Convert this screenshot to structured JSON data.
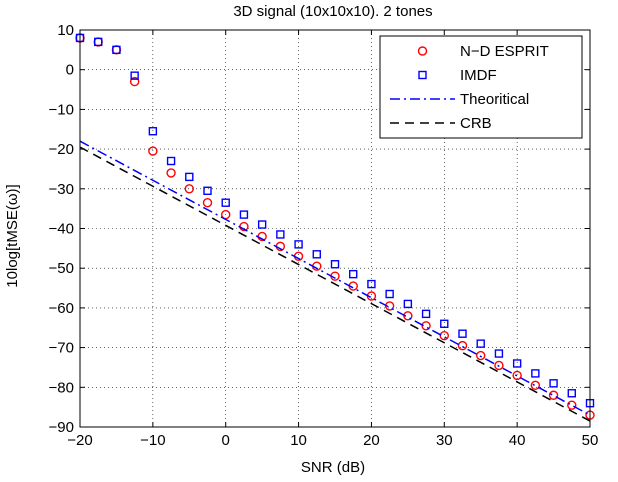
{
  "chart_data": {
    "type": "scatter",
    "title": "3D signal (10x10x10). 2 tones",
    "xlabel": "SNR (dB)",
    "ylabel": "10log[tMSE(ω)]",
    "xlim": [
      -20,
      50
    ],
    "ylim": [
      -90,
      10
    ],
    "xticks": [
      -20,
      -10,
      0,
      10,
      20,
      30,
      40,
      50
    ],
    "yticks": [
      -90,
      -80,
      -70,
      -60,
      -50,
      -40,
      -30,
      -20,
      -10,
      0,
      10
    ],
    "xtick_labels": [
      "−20",
      "−10",
      "0",
      "10",
      "20",
      "30",
      "40",
      "50"
    ],
    "ytick_labels": [
      "−90",
      "−80",
      "−70",
      "−60",
      "−50",
      "−40",
      "−30",
      "−20",
      "−10",
      "0",
      "10"
    ],
    "grid": true,
    "legend_position": "top-right",
    "series": [
      {
        "name": "N−D ESPRIT",
        "marker": "circle",
        "style": "markers",
        "color": "#ff0000",
        "x": [
          -20,
          -17.5,
          -15,
          -12.5,
          -10,
          -7.5,
          -5,
          -2.5,
          0,
          2.5,
          5,
          7.5,
          10,
          12.5,
          15,
          17.5,
          20,
          22.5,
          25,
          27.5,
          30,
          32.5,
          35,
          37.5,
          40,
          42.5,
          45,
          47.5,
          50
        ],
        "y": [
          8,
          7,
          5,
          -3,
          -20.5,
          -26,
          -30,
          -33.5,
          -36.5,
          -39.5,
          -42,
          -44.5,
          -47,
          -49.5,
          -52,
          -54.5,
          -57,
          -59.5,
          -62,
          -64.5,
          -67,
          -69.5,
          -72,
          -74.5,
          -77,
          -79.5,
          -82,
          -84.5,
          -87
        ]
      },
      {
        "name": "IMDF",
        "marker": "square",
        "style": "markers",
        "color": "#0000ff",
        "x": [
          -20,
          -17.5,
          -15,
          -12.5,
          -10,
          -7.5,
          -5,
          -2.5,
          0,
          2.5,
          5,
          7.5,
          10,
          12.5,
          15,
          17.5,
          20,
          22.5,
          25,
          27.5,
          30,
          32.5,
          35,
          37.5,
          40,
          42.5,
          45,
          47.5,
          50
        ],
        "y": [
          8,
          7,
          5,
          -1.5,
          -15.5,
          -23,
          -27,
          -30.5,
          -33.5,
          -36.5,
          -39,
          -41.5,
          -44,
          -46.5,
          -49,
          -51.5,
          -54,
          -56.5,
          -59,
          -61.5,
          -64,
          -66.5,
          -69,
          -71.5,
          -74,
          -76.5,
          -79,
          -81.5,
          -84
        ]
      },
      {
        "name": "Theoritical",
        "style": "dashdot",
        "color": "#0000ff",
        "x": [
          -20,
          50
        ],
        "y": [
          -18,
          -87
        ]
      },
      {
        "name": "CRB",
        "style": "dashed",
        "color": "#000000",
        "x": [
          -20,
          50
        ],
        "y": [
          -19.5,
          -88.5
        ]
      }
    ]
  }
}
